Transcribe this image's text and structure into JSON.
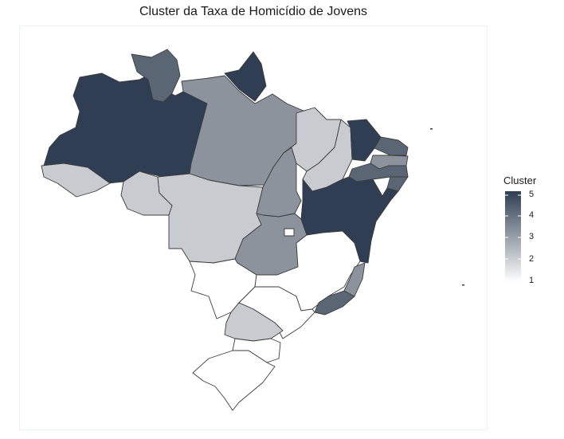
{
  "title": "Cluster da Taxa de Homicídio de Jovens",
  "legend": {
    "title": "Cluster",
    "labels": [
      "5",
      "4",
      "3",
      "2",
      "1"
    ],
    "color_low": "#ffffff",
    "color_high": "#2f3e52"
  },
  "palette": {
    "1": "#ffffff",
    "2": "#c8cbcf",
    "3": "#8c939d",
    "4": "#5b6675",
    "5": "#2f3e52"
  },
  "states": [
    {
      "code": "AM",
      "cluster": 5
    },
    {
      "code": "RR",
      "cluster": 4
    },
    {
      "code": "AP",
      "cluster": 5
    },
    {
      "code": "PA",
      "cluster": 3
    },
    {
      "code": "AC",
      "cluster": 2
    },
    {
      "code": "RO",
      "cluster": 2
    },
    {
      "code": "MT",
      "cluster": 2
    },
    {
      "code": "TO",
      "cluster": 3
    },
    {
      "code": "MA",
      "cluster": 2
    },
    {
      "code": "PI",
      "cluster": 2
    },
    {
      "code": "CE",
      "cluster": 5
    },
    {
      "code": "RN",
      "cluster": 4
    },
    {
      "code": "PB",
      "cluster": 3
    },
    {
      "code": "PE",
      "cluster": 4
    },
    {
      "code": "AL",
      "cluster": 4
    },
    {
      "code": "SE",
      "cluster": 5
    },
    {
      "code": "BA",
      "cluster": 5
    },
    {
      "code": "GO",
      "cluster": 3
    },
    {
      "code": "DF",
      "cluster": 1
    },
    {
      "code": "MG",
      "cluster": 1
    },
    {
      "code": "ES",
      "cluster": 3
    },
    {
      "code": "RJ",
      "cluster": 4
    },
    {
      "code": "SP",
      "cluster": 1
    },
    {
      "code": "MS",
      "cluster": 1
    },
    {
      "code": "PR",
      "cluster": 2
    },
    {
      "code": "SC",
      "cluster": 1
    },
    {
      "code": "RS",
      "cluster": 1
    }
  ]
}
